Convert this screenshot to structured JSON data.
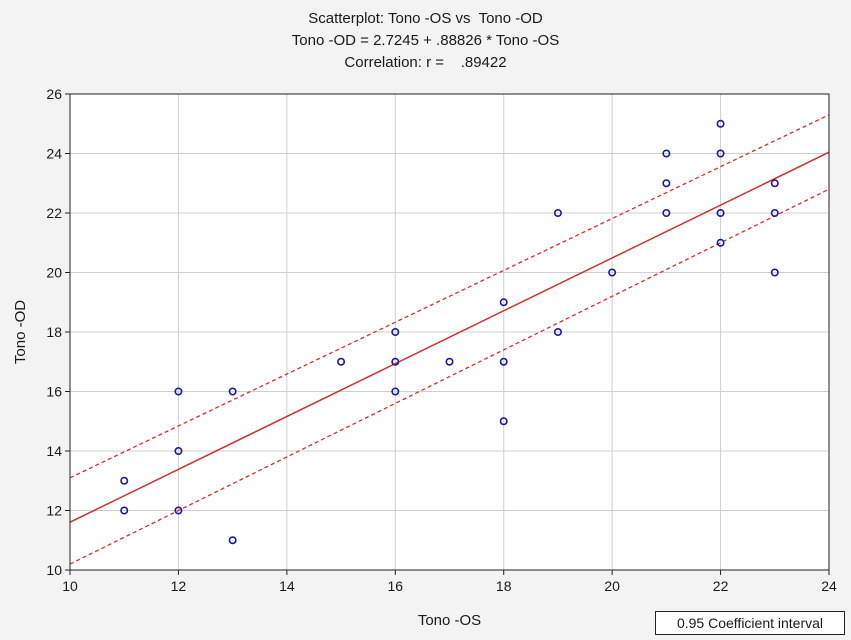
{
  "chart_data": {
    "type": "scatter",
    "title": "Scatterplot: Tono -OS vs  Tono -OD",
    "subtitle": "Tono -OD = 2.7245 + .88826 * Tono -OS",
    "annotation": "Correlation: r =    .89422",
    "xlabel": "Tono -OS",
    "ylabel": "Tono -OD",
    "xlim": [
      10,
      24
    ],
    "ylim": [
      10,
      26
    ],
    "xticks": [
      10,
      12,
      14,
      16,
      18,
      20,
      22,
      24
    ],
    "yticks": [
      10,
      12,
      14,
      16,
      18,
      20,
      22,
      24,
      26
    ],
    "grid": true,
    "regression": {
      "intercept": 2.7245,
      "slope": 0.88826,
      "color": "#d03030"
    },
    "confidence_band": {
      "label": "0.95 Coefficient interval",
      "upper": [
        [
          10,
          13.1
        ],
        [
          24,
          25.3
        ]
      ],
      "lower": [
        [
          10,
          10.2
        ],
        [
          24,
          22.8
        ]
      ],
      "color": "#d03030"
    },
    "point_color": "#1a1aa0",
    "points": [
      {
        "x": 11,
        "y": 13
      },
      {
        "x": 11,
        "y": 12
      },
      {
        "x": 12,
        "y": 16
      },
      {
        "x": 12,
        "y": 14
      },
      {
        "x": 12,
        "y": 12
      },
      {
        "x": 13,
        "y": 16
      },
      {
        "x": 13,
        "y": 11
      },
      {
        "x": 15,
        "y": 17
      },
      {
        "x": 16,
        "y": 18
      },
      {
        "x": 16,
        "y": 17
      },
      {
        "x": 16,
        "y": 16
      },
      {
        "x": 17,
        "y": 17
      },
      {
        "x": 18,
        "y": 19
      },
      {
        "x": 18,
        "y": 17
      },
      {
        "x": 18,
        "y": 15
      },
      {
        "x": 19,
        "y": 22
      },
      {
        "x": 19,
        "y": 18
      },
      {
        "x": 20,
        "y": 20
      },
      {
        "x": 21,
        "y": 24
      },
      {
        "x": 21,
        "y": 23
      },
      {
        "x": 21,
        "y": 22
      },
      {
        "x": 22,
        "y": 25
      },
      {
        "x": 22,
        "y": 24
      },
      {
        "x": 22,
        "y": 22
      },
      {
        "x": 22,
        "y": 21
      },
      {
        "x": 23,
        "y": 23
      },
      {
        "x": 23,
        "y": 22
      },
      {
        "x": 23,
        "y": 20
      }
    ],
    "legend_position": "bottom-right"
  }
}
